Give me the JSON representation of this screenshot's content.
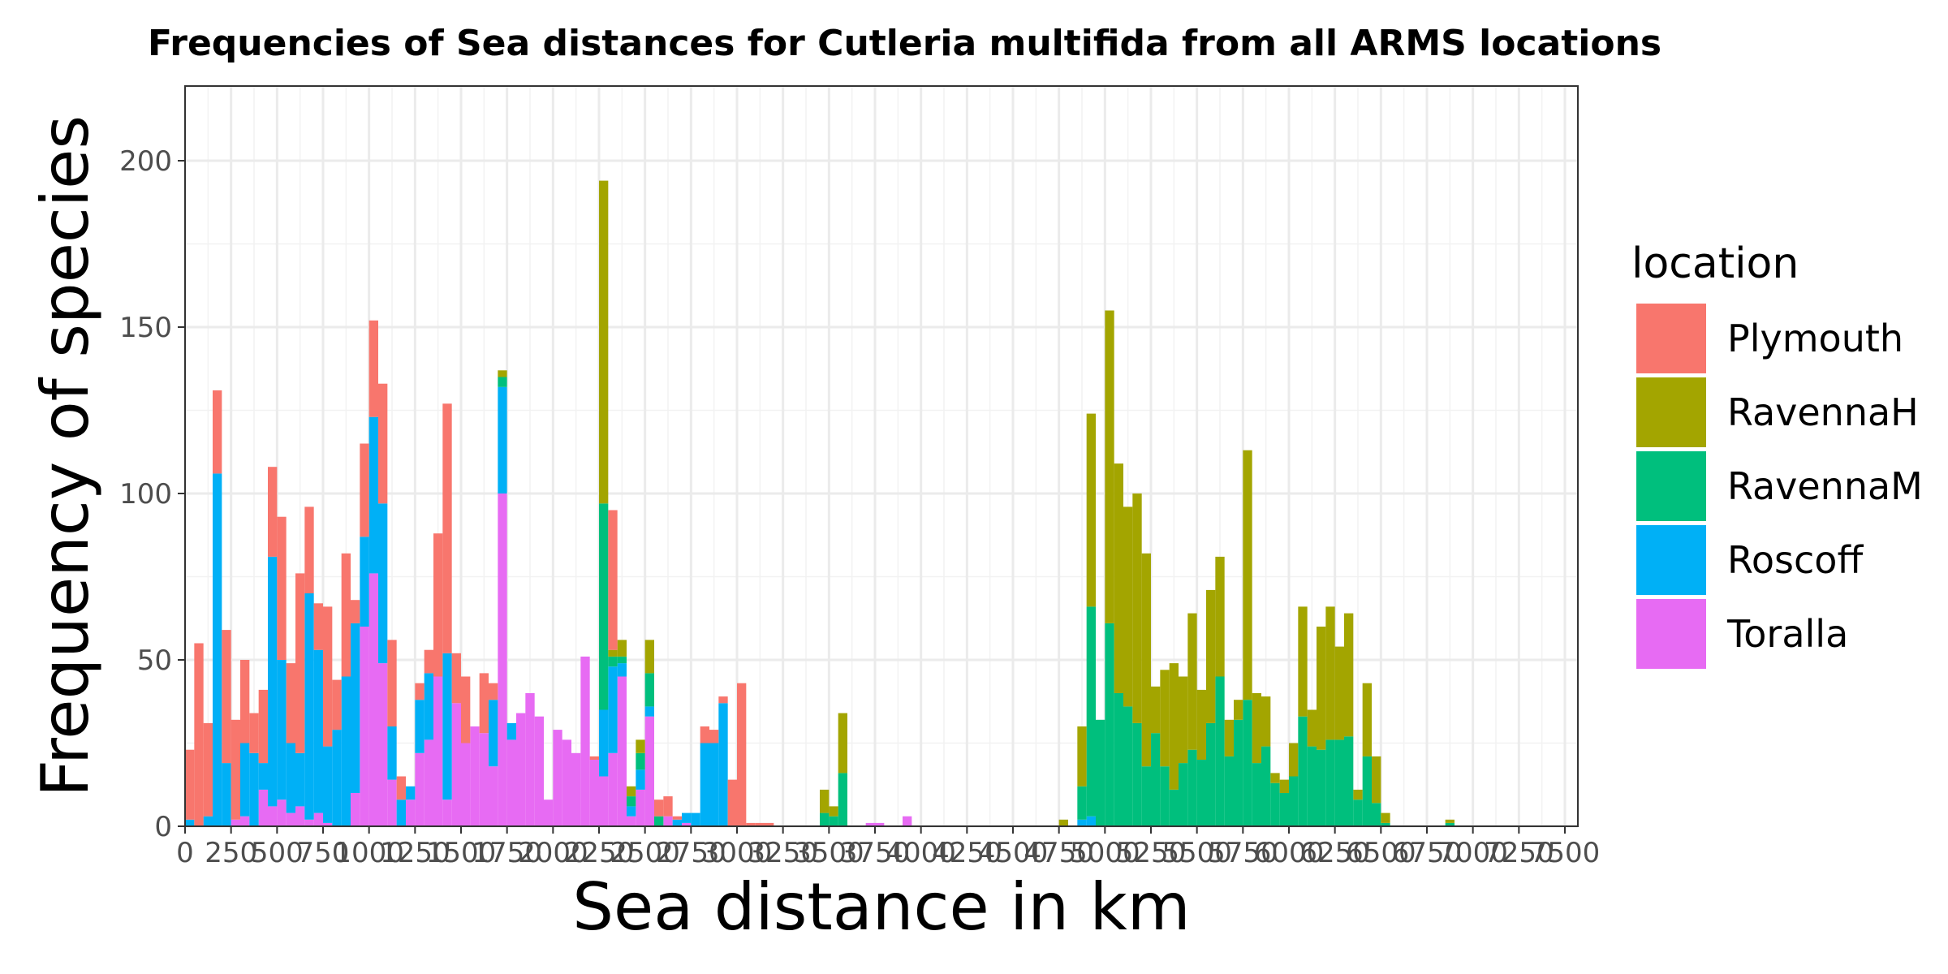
{
  "chart_data": {
    "type": "bar",
    "stacked": true,
    "title": "Frequencies of Sea distances for Cutleria multifida from all ARMS locations",
    "xlabel": "Sea distance in km",
    "ylabel": "Frequency of species",
    "xlim": [
      0,
      7500
    ],
    "ylim": [
      0,
      222
    ],
    "bin_width": 50,
    "x_ticks": [
      0,
      250,
      500,
      750,
      1000,
      1250,
      1500,
      1750,
      2000,
      2250,
      2500,
      2750,
      3000,
      3250,
      3500,
      3750,
      4000,
      4250,
      4500,
      4750,
      5000,
      5250,
      5500,
      5750,
      6000,
      6250,
      6500,
      6750,
      7000,
      7250,
      7500
    ],
    "x_tick_labels": [
      "0",
      "250",
      "500",
      "750",
      "1000",
      "1250",
      "1500",
      "1750",
      "2000",
      "2250",
      "2500",
      "2750",
      "3000",
      "3250",
      "3500",
      "3750",
      "4000",
      "4250",
      "4500",
      "4750",
      "5000",
      "5250",
      "5500",
      "5750",
      "6000",
      "6250",
      "6500",
      "6750",
      "7000",
      "7250",
      "7500"
    ],
    "y_ticks": [
      0,
      50,
      100,
      150,
      200
    ],
    "y_tick_labels": [
      "0",
      "50",
      "100",
      "150",
      "200"
    ],
    "grid": true,
    "legend": {
      "title": "location",
      "position": "right"
    },
    "series": [
      {
        "name": "Plymouth",
        "color": "#F8766D",
        "points": [
          [
            0,
            21
          ],
          [
            50,
            55
          ],
          [
            100,
            28
          ],
          [
            150,
            25
          ],
          [
            200,
            40
          ],
          [
            250,
            30
          ],
          [
            300,
            25
          ],
          [
            350,
            12
          ],
          [
            400,
            22
          ],
          [
            450,
            27
          ],
          [
            500,
            43
          ],
          [
            550,
            24
          ],
          [
            600,
            54
          ],
          [
            650,
            26
          ],
          [
            700,
            14
          ],
          [
            750,
            42
          ],
          [
            800,
            15
          ],
          [
            850,
            37
          ],
          [
            900,
            7
          ],
          [
            950,
            28
          ],
          [
            1000,
            29
          ],
          [
            1050,
            36
          ],
          [
            1100,
            26
          ],
          [
            1150,
            7
          ],
          [
            1200,
            0
          ],
          [
            1250,
            5
          ],
          [
            1300,
            7
          ],
          [
            1350,
            43
          ],
          [
            1400,
            75
          ],
          [
            1450,
            15
          ],
          [
            1500,
            20
          ],
          [
            1550,
            0
          ],
          [
            1600,
            18
          ],
          [
            1650,
            5
          ],
          [
            1700,
            0
          ],
          [
            1750,
            0
          ],
          [
            1800,
            0
          ],
          [
            1850,
            0
          ],
          [
            1900,
            0
          ],
          [
            1950,
            0
          ],
          [
            2000,
            0
          ],
          [
            2050,
            0
          ],
          [
            2100,
            0
          ],
          [
            2150,
            0
          ],
          [
            2200,
            1
          ],
          [
            2250,
            0
          ],
          [
            2300,
            42
          ],
          [
            2350,
            0
          ],
          [
            2400,
            0
          ],
          [
            2450,
            0
          ],
          [
            2500,
            0
          ],
          [
            2550,
            5
          ],
          [
            2600,
            6
          ],
          [
            2650,
            1
          ],
          [
            2700,
            0
          ],
          [
            2750,
            0
          ],
          [
            2800,
            5
          ],
          [
            2850,
            4
          ],
          [
            2900,
            2
          ],
          [
            2950,
            14
          ],
          [
            3000,
            43
          ],
          [
            3050,
            1
          ],
          [
            3100,
            1
          ],
          [
            3150,
            1
          ]
        ]
      },
      {
        "name": "RavennaH",
        "color": "#A3A500",
        "points": [
          [
            1700,
            2
          ],
          [
            1750,
            0
          ],
          [
            2200,
            0
          ],
          [
            2250,
            97
          ],
          [
            2300,
            2
          ],
          [
            2350,
            5
          ],
          [
            2400,
            3
          ],
          [
            2450,
            4
          ],
          [
            2500,
            10
          ],
          [
            3450,
            7
          ],
          [
            3500,
            3
          ],
          [
            3550,
            18
          ],
          [
            4750,
            2
          ],
          [
            4850,
            18
          ],
          [
            4900,
            58
          ],
          [
            4950,
            0
          ],
          [
            5000,
            94
          ],
          [
            5050,
            69
          ],
          [
            5100,
            60
          ],
          [
            5150,
            69
          ],
          [
            5200,
            64
          ],
          [
            5250,
            14
          ],
          [
            5300,
            29
          ],
          [
            5350,
            38
          ],
          [
            5400,
            26
          ],
          [
            5450,
            41
          ],
          [
            5500,
            21
          ],
          [
            5550,
            40
          ],
          [
            5600,
            36
          ],
          [
            5650,
            11
          ],
          [
            5700,
            6
          ],
          [
            5750,
            75
          ],
          [
            5800,
            21
          ],
          [
            5850,
            15
          ],
          [
            5900,
            3
          ],
          [
            5950,
            4
          ],
          [
            6000,
            10
          ],
          [
            6050,
            33
          ],
          [
            6100,
            11
          ],
          [
            6150,
            37
          ],
          [
            6200,
            40
          ],
          [
            6250,
            28
          ],
          [
            6300,
            37
          ],
          [
            6350,
            3
          ],
          [
            6400,
            22
          ],
          [
            6450,
            14
          ],
          [
            6500,
            3
          ],
          [
            6550,
            0
          ],
          [
            6850,
            1
          ]
        ]
      },
      {
        "name": "RavennaM",
        "color": "#00BF7D",
        "points": [
          [
            1700,
            3
          ],
          [
            1750,
            0
          ],
          [
            2200,
            0
          ],
          [
            2250,
            62
          ],
          [
            2300,
            3
          ],
          [
            2350,
            2
          ],
          [
            2400,
            3
          ],
          [
            2450,
            5
          ],
          [
            2500,
            10
          ],
          [
            2550,
            3
          ],
          [
            3450,
            4
          ],
          [
            3500,
            3
          ],
          [
            3550,
            16
          ],
          [
            4800,
            0
          ],
          [
            4850,
            10
          ],
          [
            4900,
            63
          ],
          [
            4950,
            32
          ],
          [
            5000,
            61
          ],
          [
            5050,
            40
          ],
          [
            5100,
            36
          ],
          [
            5150,
            31
          ],
          [
            5200,
            18
          ],
          [
            5250,
            28
          ],
          [
            5300,
            18
          ],
          [
            5350,
            11
          ],
          [
            5400,
            19
          ],
          [
            5450,
            23
          ],
          [
            5500,
            20
          ],
          [
            5550,
            31
          ],
          [
            5600,
            45
          ],
          [
            5650,
            21
          ],
          [
            5700,
            32
          ],
          [
            5750,
            38
          ],
          [
            5800,
            19
          ],
          [
            5850,
            24
          ],
          [
            5900,
            13
          ],
          [
            5950,
            10
          ],
          [
            6000,
            15
          ],
          [
            6050,
            33
          ],
          [
            6100,
            24
          ],
          [
            6150,
            23
          ],
          [
            6200,
            26
          ],
          [
            6250,
            26
          ],
          [
            6300,
            27
          ],
          [
            6350,
            8
          ],
          [
            6400,
            21
          ],
          [
            6450,
            7
          ],
          [
            6500,
            1
          ],
          [
            6850,
            1
          ]
        ]
      },
      {
        "name": "Roscoff",
        "color": "#00B0F6",
        "points": [
          [
            0,
            2
          ],
          [
            50,
            0
          ],
          [
            100,
            3
          ],
          [
            150,
            106
          ],
          [
            200,
            19
          ],
          [
            250,
            0
          ],
          [
            300,
            22
          ],
          [
            350,
            22
          ],
          [
            400,
            8
          ],
          [
            450,
            75
          ],
          [
            500,
            42
          ],
          [
            550,
            21
          ],
          [
            600,
            16
          ],
          [
            650,
            68
          ],
          [
            700,
            49
          ],
          [
            750,
            23
          ],
          [
            800,
            29
          ],
          [
            850,
            45
          ],
          [
            900,
            51
          ],
          [
            950,
            27
          ],
          [
            1000,
            47
          ],
          [
            1050,
            48
          ],
          [
            1100,
            16
          ],
          [
            1150,
            8
          ],
          [
            1200,
            4
          ],
          [
            1250,
            16
          ],
          [
            1300,
            20
          ],
          [
            1350,
            0
          ],
          [
            1400,
            44
          ],
          [
            1450,
            0
          ],
          [
            1500,
            0
          ],
          [
            1550,
            0
          ],
          [
            1600,
            0
          ],
          [
            1650,
            20
          ],
          [
            1700,
            32
          ],
          [
            1750,
            5
          ],
          [
            1800,
            0
          ],
          [
            1850,
            0
          ],
          [
            1900,
            0
          ],
          [
            1950,
            0
          ],
          [
            2000,
            0
          ],
          [
            2050,
            0
          ],
          [
            2100,
            0
          ],
          [
            2150,
            0
          ],
          [
            2200,
            0
          ],
          [
            2250,
            20
          ],
          [
            2300,
            26
          ],
          [
            2350,
            4
          ],
          [
            2400,
            3
          ],
          [
            2450,
            6
          ],
          [
            2500,
            3
          ],
          [
            2550,
            0
          ],
          [
            2600,
            0
          ],
          [
            2650,
            2
          ],
          [
            2700,
            3
          ],
          [
            2750,
            4
          ],
          [
            2800,
            25
          ],
          [
            2850,
            25
          ],
          [
            2900,
            37
          ],
          [
            2950,
            0
          ],
          [
            3000,
            0
          ],
          [
            4850,
            2
          ],
          [
            4900,
            3
          ]
        ]
      },
      {
        "name": "Toralla",
        "color": "#E76BF3",
        "points": [
          [
            0,
            0
          ],
          [
            50,
            0
          ],
          [
            100,
            0
          ],
          [
            150,
            0
          ],
          [
            200,
            0
          ],
          [
            250,
            2
          ],
          [
            300,
            3
          ],
          [
            350,
            0
          ],
          [
            400,
            11
          ],
          [
            450,
            6
          ],
          [
            500,
            8
          ],
          [
            550,
            4
          ],
          [
            600,
            6
          ],
          [
            650,
            2
          ],
          [
            700,
            4
          ],
          [
            750,
            1
          ],
          [
            800,
            0
          ],
          [
            850,
            0
          ],
          [
            900,
            10
          ],
          [
            950,
            60
          ],
          [
            1000,
            76
          ],
          [
            1050,
            49
          ],
          [
            1100,
            14
          ],
          [
            1150,
            0
          ],
          [
            1200,
            8
          ],
          [
            1250,
            22
          ],
          [
            1300,
            26
          ],
          [
            1350,
            45
          ],
          [
            1400,
            8
          ],
          [
            1450,
            37
          ],
          [
            1500,
            25
          ],
          [
            1550,
            30
          ],
          [
            1600,
            28
          ],
          [
            1650,
            18
          ],
          [
            1700,
            100
          ],
          [
            1750,
            26
          ],
          [
            1800,
            34
          ],
          [
            1850,
            40
          ],
          [
            1900,
            33
          ],
          [
            1950,
            8
          ],
          [
            2000,
            29
          ],
          [
            2050,
            26
          ],
          [
            2100,
            22
          ],
          [
            2150,
            51
          ],
          [
            2200,
            20
          ],
          [
            2250,
            15
          ],
          [
            2300,
            22
          ],
          [
            2350,
            45
          ],
          [
            2400,
            3
          ],
          [
            2450,
            11
          ],
          [
            2500,
            33
          ],
          [
            2550,
            0
          ],
          [
            2600,
            3
          ],
          [
            2650,
            0
          ],
          [
            2700,
            1
          ],
          [
            2750,
            0
          ],
          [
            2800,
            0
          ],
          [
            2850,
            0
          ],
          [
            2900,
            0
          ],
          [
            2950,
            0
          ],
          [
            3000,
            0
          ],
          [
            3350,
            0
          ],
          [
            3700,
            1
          ],
          [
            3750,
            1
          ],
          [
            3900,
            3
          ],
          [
            3950,
            0
          ]
        ]
      }
    ]
  }
}
